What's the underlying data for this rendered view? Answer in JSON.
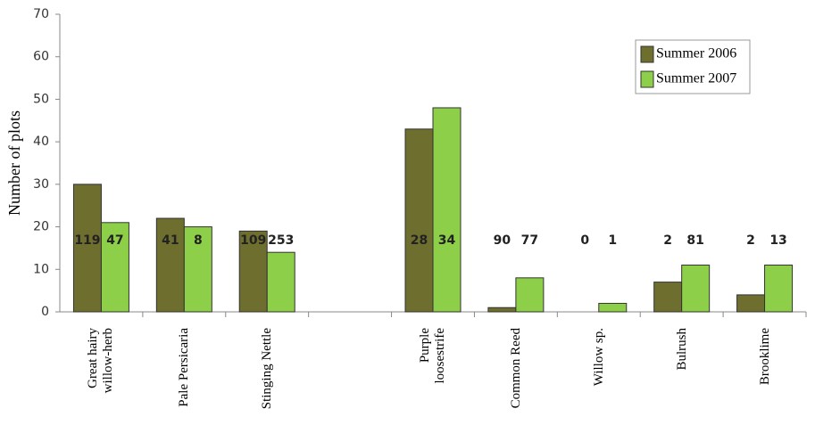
{
  "chart_data": {
    "type": "bar",
    "y_label": "Number of plots",
    "categories": [
      "Great hairy willow-herb",
      "Pale Persicaria",
      "Stinging Nettle",
      null,
      "Purple loosestrife",
      "Common Reed",
      "Willow sp.",
      "Bulrush",
      "Brooklime"
    ],
    "series": [
      {
        "name": "Summer 2006",
        "color": "#6e6e2e",
        "values": [
          30,
          22,
          19,
          null,
          43,
          1,
          0,
          7,
          4
        ],
        "annotations": [
          119,
          41,
          109,
          null,
          28,
          90,
          0,
          2,
          2
        ]
      },
      {
        "name": "Summer 2007",
        "color": "#8dcf48",
        "values": [
          21,
          20,
          14,
          null,
          48,
          8,
          2,
          11,
          11
        ],
        "annotations": [
          47,
          8,
          253,
          null,
          34,
          77,
          1,
          81,
          13
        ]
      }
    ],
    "ylim": [
      0,
      70
    ],
    "yticks": [
      0,
      10,
      20,
      30,
      40,
      50,
      60,
      70
    ],
    "legend": "upper right"
  }
}
